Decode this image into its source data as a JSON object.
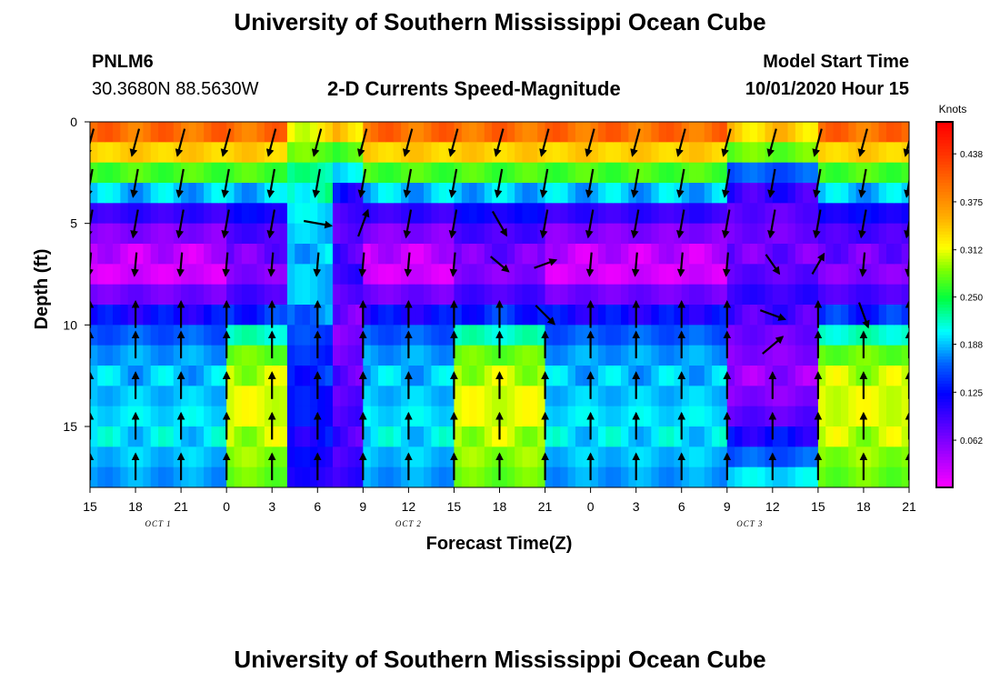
{
  "header": {
    "title_top": "University of Southern Mississippi Ocean Cube",
    "title_bottom": "University of Southern Mississippi Ocean Cube",
    "station_id": "PNLM6",
    "station_coords": "30.3680N 88.5630W",
    "model_start_label": "Model Start Time",
    "model_start_value": "10/01/2020 Hour 15"
  },
  "chart_data": {
    "type": "heatmap",
    "title": "2-D Currents Speed-Magnitude",
    "xlabel": "Forecast Time(Z)",
    "ylabel": "Depth (ft)",
    "x_ticks": [
      "15",
      "18",
      "21",
      "0",
      "3",
      "6",
      "9",
      "12",
      "15",
      "18",
      "21",
      "0",
      "3",
      "6",
      "9",
      "12",
      "15",
      "18",
      "21"
    ],
    "x_range_hours": [
      0,
      54
    ],
    "date_labels": [
      {
        "text": "OCT 1",
        "hour": 4.5
      },
      {
        "text": "OCT 2",
        "hour": 21
      },
      {
        "text": "OCT 3",
        "hour": 43.5
      }
    ],
    "y_ticks": [
      "0",
      "5",
      "10",
      "15"
    ],
    "y_tick_values": [
      0,
      5,
      10,
      15
    ],
    "y_range_ft": [
      0,
      18
    ],
    "colorbar": {
      "unit": "Knots",
      "ticks": [
        "0.438",
        "0.375",
        "0.312",
        "0.250",
        "0.188",
        "0.125",
        "0.062"
      ],
      "tick_values": [
        0.438,
        0.375,
        0.312,
        0.25,
        0.188,
        0.125,
        0.062
      ],
      "range": [
        0,
        0.48
      ]
    },
    "depths_ft": [
      0.5,
      1.5,
      2.5,
      3.5,
      4.5,
      5.5,
      6.5,
      7.5,
      8.5,
      9.5,
      10.5,
      11.5,
      12.5,
      13.5,
      14.5,
      15.5,
      16.5,
      17.5
    ],
    "speed_profiles": [
      {
        "name": "default",
        "values": [
          0.4,
          0.34,
          0.27,
          0.19,
          0.1,
          0.06,
          0.03,
          0.02,
          0.07,
          0.12,
          0.16,
          0.18,
          0.19,
          0.19,
          0.2,
          0.2,
          0.19,
          0.18
        ]
      },
      {
        "name": "surge_a",
        "values": [
          0.4,
          0.34,
          0.27,
          0.19,
          0.12,
          0.09,
          0.07,
          0.06,
          0.09,
          0.14,
          0.22,
          0.28,
          0.3,
          0.31,
          0.31,
          0.3,
          0.29,
          0.28
        ]
      },
      {
        "name": "transition",
        "values": [
          0.32,
          0.28,
          0.23,
          0.22,
          0.2,
          0.19,
          0.19,
          0.19,
          0.19,
          0.17,
          0.15,
          0.14,
          0.14,
          0.13,
          0.13,
          0.12,
          0.12,
          0.11
        ]
      },
      {
        "name": "slack",
        "values": [
          0.34,
          0.27,
          0.2,
          0.12,
          0.09,
          0.08,
          0.09,
          0.1,
          0.08,
          0.07,
          0.06,
          0.07,
          0.08,
          0.08,
          0.09,
          0.09,
          0.09,
          0.1
        ]
      },
      {
        "name": "deep_low",
        "values": [
          0.34,
          0.28,
          0.16,
          0.1,
          0.08,
          0.07,
          0.07,
          0.08,
          0.1,
          0.09,
          0.07,
          0.06,
          0.05,
          0.06,
          0.08,
          0.12,
          0.16,
          0.2
        ]
      }
    ],
    "time_segments": [
      {
        "start": 0,
        "end": 9,
        "profile": "default"
      },
      {
        "start": 9,
        "end": 13,
        "profile": "surge_a"
      },
      {
        "start": 13,
        "end": 16,
        "profile": "transition"
      },
      {
        "start": 16,
        "end": 18,
        "profile": "slack"
      },
      {
        "start": 18,
        "end": 24,
        "profile": "default"
      },
      {
        "start": 24,
        "end": 30,
        "profile": "surge_a"
      },
      {
        "start": 30,
        "end": 42,
        "profile": "default"
      },
      {
        "start": 42,
        "end": 48,
        "profile": "deep_low"
      },
      {
        "start": 48,
        "end": 54,
        "profile": "surge_a"
      }
    ],
    "vector_columns_hours": [
      0,
      3,
      6,
      9,
      12,
      15,
      18,
      21,
      24,
      27,
      30,
      33,
      36,
      39,
      42,
      45,
      48,
      51,
      54
    ],
    "vector_rows_ft": [
      1,
      3,
      5,
      7,
      9.5,
      11,
      13,
      15,
      17
    ],
    "vector_default_angles_deg": [
      -105,
      -100,
      -100,
      -95,
      90,
      90,
      90,
      90,
      90
    ],
    "vector_length_by_row": [
      0.9,
      0.9,
      0.9,
      0.75,
      0.85,
      0.85,
      0.85,
      0.85,
      0.85
    ],
    "vector_overrides": [
      {
        "hour": 15,
        "row": 2,
        "angle": -10
      },
      {
        "hour": 16,
        "row": 4,
        "angle": 65
      },
      {
        "hour": 18,
        "row": 2,
        "angle": 70
      },
      {
        "hour": 27,
        "row": 2,
        "angle": -60
      },
      {
        "hour": 27,
        "row": 3,
        "angle": -40
      },
      {
        "hour": 30,
        "row": 3,
        "angle": 20
      },
      {
        "hour": 30,
        "row": 4,
        "angle": -45
      },
      {
        "hour": 45,
        "row": 3,
        "angle": -55
      },
      {
        "hour": 45,
        "row": 4,
        "angle": -20
      },
      {
        "hour": 45,
        "row": 5,
        "angle": 40
      },
      {
        "hour": 48,
        "row": 3,
        "angle": 60
      },
      {
        "hour": 51,
        "row": 4,
        "angle": -70
      }
    ]
  }
}
